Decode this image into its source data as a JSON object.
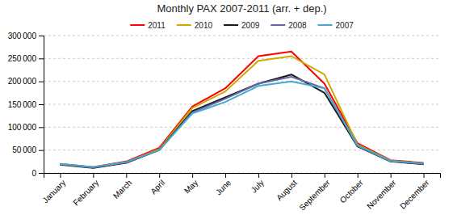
{
  "chart_data": {
    "type": "line",
    "title": "Monthly PAX 2007-2011 (arr. + dep.)",
    "categories": [
      "January",
      "February",
      "March",
      "April",
      "May",
      "June",
      "July",
      "August",
      "September",
      "October",
      "November",
      "December"
    ],
    "series": [
      {
        "name": "2011",
        "color": "#FF0000",
        "values": [
          20000,
          13000,
          25000,
          55000,
          145000,
          185000,
          255000,
          265000,
          195000,
          65000,
          28000,
          22000
        ]
      },
      {
        "name": "2010",
        "color": "#CCAA00",
        "values": [
          19000,
          12000,
          23000,
          52000,
          142000,
          178000,
          245000,
          255000,
          215000,
          62000,
          27000,
          20000
        ]
      },
      {
        "name": "2009",
        "color": "#1A1A1A",
        "values": [
          18000,
          11000,
          22000,
          50000,
          135000,
          165000,
          195000,
          215000,
          175000,
          58000,
          25000,
          19000
        ]
      },
      {
        "name": "2008",
        "color": "#6666AA",
        "values": [
          19000,
          12000,
          23000,
          50000,
          132000,
          162000,
          195000,
          210000,
          185000,
          60000,
          26000,
          20000
        ]
      },
      {
        "name": "2007",
        "color": "#44AACC",
        "values": [
          20000,
          13000,
          24000,
          50000,
          130000,
          155000,
          190000,
          200000,
          185000,
          60000,
          26000,
          21000
        ]
      }
    ],
    "ylim": [
      0,
      300000
    ],
    "yticks": [
      0,
      {
        "value": 50000,
        "label": "50 000"
      },
      {
        "value": 100000,
        "label": "100 000"
      },
      {
        "value": 150000,
        "label": "150 000"
      },
      {
        "value": 200000,
        "label": "200 000"
      },
      {
        "value": 250000,
        "label": "250 000"
      },
      {
        "value": 300000,
        "label": "300 000"
      }
    ],
    "grid": true,
    "legend": "top"
  }
}
